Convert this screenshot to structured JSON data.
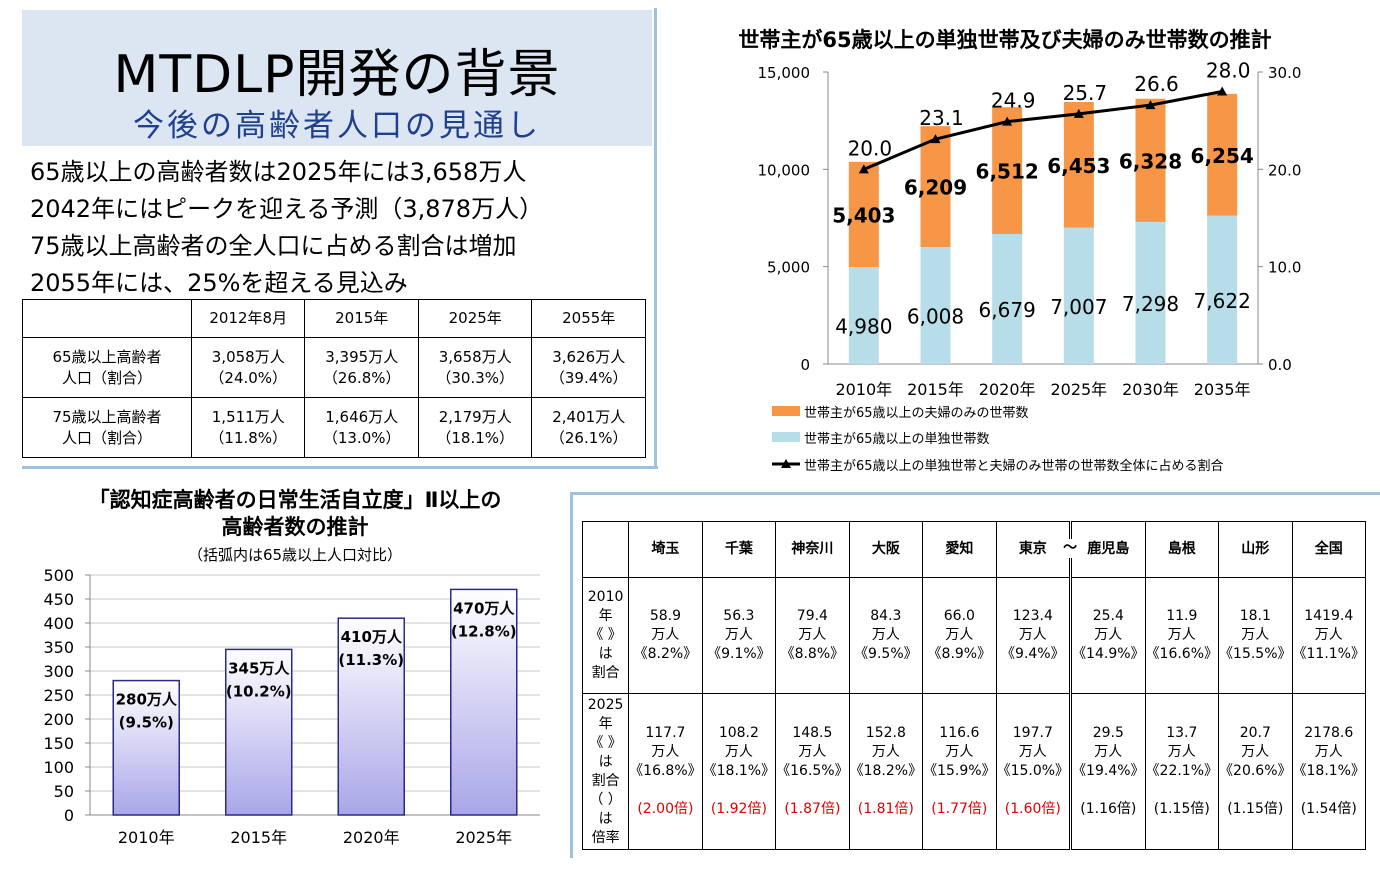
{
  "title": {
    "main": "MTDLP開発の背景",
    "sub": "今後の高齢者人口の見通し"
  },
  "bullets": [
    "65歳以上の高齢者数は2025年には3,658万人",
    "2042年にはピークを迎える予測（3,878万人）",
    "75歳以上高齢者の全人口に占める割合は増加",
    "2055年には、25%を超える見込み"
  ],
  "population_table": {
    "headers": [
      "",
      "2012年8月",
      "2015年",
      "2025年",
      "2055年"
    ],
    "rows": [
      {
        "label": [
          "65歳以上高齢者",
          "人口（割合）"
        ],
        "cells": [
          [
            "3,058万人",
            "（24.0%）"
          ],
          [
            "3,395万人",
            "（26.8%）"
          ],
          [
            "3,658万人",
            "（30.3%）"
          ],
          [
            "3,626万人",
            "（39.4%）"
          ]
        ]
      },
      {
        "label": [
          "75歳以上高齢者",
          "人口（割合）"
        ],
        "cells": [
          [
            "1,511万人",
            "（11.8%）"
          ],
          [
            "1,646万人",
            "（13.0%）"
          ],
          [
            "2,179万人",
            "（18.1%）"
          ],
          [
            "2,401万人",
            "（26.1%）"
          ]
        ]
      }
    ]
  },
  "chart_data": [
    {
      "type": "bar",
      "title": "世帯主が65歳以上の単独世帯及び夫婦のみ世帯数の推計",
      "categories": [
        "2010年",
        "2015年",
        "2020年",
        "2025年",
        "2030年",
        "2035年"
      ],
      "stacked": true,
      "series": [
        {
          "name": "世帯主が65歳以上の単独世帯数",
          "values": [
            4980,
            6008,
            6679,
            7007,
            7298,
            7622
          ],
          "color": "#b7dde8",
          "labels": [
            "4,980",
            "6,008",
            "6,679",
            "7,007",
            "7,298",
            "7,622"
          ]
        },
        {
          "name": "世帯主が65歳以上の夫婦のみの世帯数",
          "values": [
            5403,
            6209,
            6512,
            6453,
            6328,
            6254
          ],
          "color": "#f79646",
          "labels": [
            "5,403",
            "6,209",
            "6,512",
            "6,453",
            "6,328",
            "6,254"
          ]
        }
      ],
      "line_series": {
        "name": "世帯主が65歳以上の単独世帯と夫婦のみ世帯の世帯数全体に占める割合",
        "values": [
          20.0,
          23.1,
          24.9,
          25.7,
          26.6,
          28.0
        ],
        "labels": [
          "20.0",
          "23.1",
          "24.9",
          "25.7",
          "26.6",
          "28.0"
        ],
        "color": "#000000"
      },
      "ylim": [
        0,
        15000
      ],
      "y2lim": [
        0,
        30.0
      ],
      "yticks": [
        "15,000",
        "10,000",
        "5,000",
        "0"
      ],
      "y2ticks": [
        "30.0",
        "20.0",
        "10.0",
        "0.0"
      ],
      "legend": "bottom"
    },
    {
      "type": "bar",
      "title": "「認知症高齢者の日常生活自立度」Ⅱ以上の",
      "title2": "高齢者数の推計",
      "subtitle": "（括弧内は65歳以上人口対比）",
      "categories": [
        "2010年",
        "2015年",
        "2020年",
        "2025年"
      ],
      "values": [
        280,
        345,
        410,
        470
      ],
      "bar_labels": [
        [
          "280万人",
          "(9.5%)"
        ],
        [
          "345万人",
          "(10.2%)"
        ],
        [
          "410万人",
          "(11.3%)"
        ],
        [
          "470万人",
          "(12.8%)"
        ]
      ],
      "ylim": [
        0,
        500
      ],
      "yticks": [
        "500",
        "450",
        "400",
        "350",
        "300",
        "250",
        "200",
        "150",
        "100",
        "50",
        "0"
      ],
      "grid": true,
      "color": "#a9a6e8"
    }
  ],
  "prefecture_table": {
    "headers": [
      "",
      "埼玉",
      "千葉",
      "神奈川",
      "大阪",
      "愛知",
      "東京",
      "鹿児島",
      "島根",
      "山形",
      "全国"
    ],
    "tilde": "～",
    "row2010": {
      "label": [
        "2010年",
        "《 》は",
        "割合"
      ],
      "cells": [
        [
          "58.9",
          "万人",
          "《8.2%》"
        ],
        [
          "56.3",
          "万人",
          "《9.1%》"
        ],
        [
          "79.4",
          "万人",
          "《8.8%》"
        ],
        [
          "84.3",
          "万人",
          "《9.5%》"
        ],
        [
          "66.0",
          "万人",
          "《8.9%》"
        ],
        [
          "123.4",
          "万人",
          "《9.4%》"
        ],
        [
          "25.4",
          "万人",
          "《14.9%》"
        ],
        [
          "11.9",
          "万人",
          "《16.6%》"
        ],
        [
          "18.1",
          "万人",
          "《15.5%》"
        ],
        [
          "1419.4",
          "万人",
          "《11.1%》"
        ]
      ]
    },
    "row2025": {
      "label": [
        "2025年",
        "《 》は",
        "割合",
        "（ ）は",
        "倍率"
      ],
      "cells": [
        [
          "117.7",
          "万人",
          "《16.8%》"
        ],
        [
          "108.2",
          "万人",
          "《18.1%》"
        ],
        [
          "148.5",
          "万人",
          "《16.5%》"
        ],
        [
          "152.8",
          "万人",
          "《18.2%》"
        ],
        [
          "116.6",
          "万人",
          "《15.9%》"
        ],
        [
          "197.7",
          "万人",
          "《15.0%》"
        ],
        [
          "29.5",
          "万人",
          "《19.4%》"
        ],
        [
          "13.7",
          "万人",
          "《22.1%》"
        ],
        [
          "20.7",
          "万人",
          "《20.6%》"
        ],
        [
          "2178.6",
          "万人",
          "《18.1%》"
        ]
      ],
      "ratios": [
        "(2.00倍)",
        "(1.92倍)",
        "(1.87倍)",
        "(1.81倍)",
        "(1.77倍)",
        "(1.60倍)",
        "(1.16倍)",
        "(1.15倍)",
        "(1.15倍)",
        "(1.54倍)"
      ],
      "ratio_red": [
        true,
        true,
        true,
        true,
        true,
        true,
        false,
        false,
        false,
        false
      ]
    }
  },
  "colors": {
    "title_bg": "#dce6f2",
    "subtitle": "#1f3f8f",
    "separator": "#9ec2e0",
    "ratio_red": "#e00000"
  }
}
